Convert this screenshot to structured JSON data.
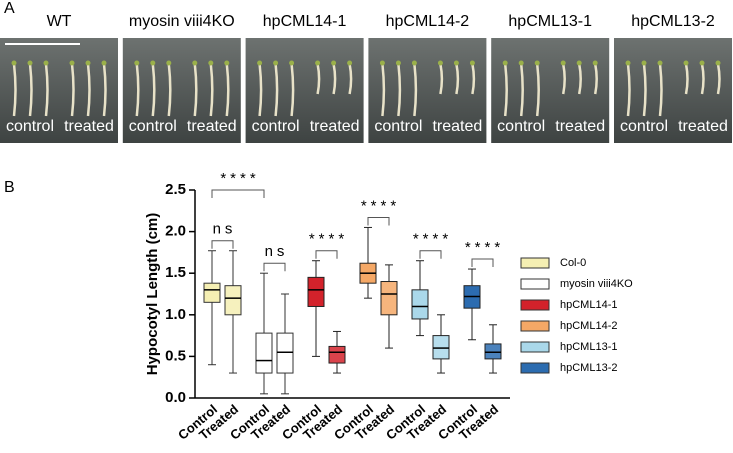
{
  "panel_a": {
    "label": "A",
    "samples": [
      "WT",
      "myosin viii4KO",
      "hpCML14-1",
      "hpCML14-2",
      "hpCML13-1",
      "hpCML13-2"
    ],
    "photo_labels": [
      "control",
      "treated"
    ]
  },
  "chart_data": {
    "type": "box",
    "panel_label": "B",
    "y_label": "Hypocotyl Length (cm)",
    "categories": [
      "Control",
      "Treated"
    ],
    "ylim": [
      0,
      2.5
    ],
    "yticks": [
      {
        "value": 0,
        "label": "0.0"
      },
      {
        "value": 0.5,
        "label": "0.5"
      },
      {
        "value": 1,
        "label": "1.0"
      },
      {
        "value": 1.5,
        "label": "1.5"
      },
      {
        "value": 2,
        "label": "2.0"
      },
      {
        "value": 2.5,
        "label": "2.5"
      }
    ],
    "annotations": [
      "****"
    ],
    "series": [
      {
        "name": "Col-0",
        "color": "#f5efb3",
        "significance": "ns",
        "values": [
          [
            0.4,
            1.15,
            1.3,
            1.38,
            1.77
          ],
          [
            0.3,
            1.0,
            1.2,
            1.35,
            1.77
          ]
        ]
      },
      {
        "name": "myosin viii4KO",
        "color": "#ffffff",
        "significance": "ns",
        "values": [
          [
            0.05,
            0.3,
            0.45,
            0.78,
            1.5
          ],
          [
            0.05,
            0.3,
            0.55,
            0.78,
            1.25
          ]
        ]
      },
      {
        "name": "hpCML14-1",
        "color": "#d3222b",
        "significance": "****",
        "values": [
          [
            0.5,
            1.1,
            1.3,
            1.45,
            1.65
          ],
          [
            0.3,
            0.42,
            0.55,
            0.62,
            0.8
          ]
        ]
      },
      {
        "name": "hpCML14-2",
        "color": "#f5a866",
        "significance": "****",
        "values": [
          [
            1.2,
            1.38,
            1.5,
            1.62,
            2.05
          ],
          [
            0.6,
            1.0,
            1.25,
            1.4,
            1.6
          ]
        ]
      },
      {
        "name": "hpCML13-1",
        "color": "#aad8ea",
        "significance": "****",
        "values": [
          [
            0.75,
            0.95,
            1.1,
            1.3,
            1.65
          ],
          [
            0.3,
            0.47,
            0.6,
            0.75,
            1.0
          ]
        ]
      },
      {
        "name": "hpCML13-2",
        "color": "#2c6cb0",
        "significance": "****",
        "values": [
          [
            0.7,
            1.08,
            1.22,
            1.35,
            1.55
          ],
          [
            0.3,
            0.47,
            0.55,
            0.65,
            0.88
          ]
        ]
      }
    ]
  }
}
